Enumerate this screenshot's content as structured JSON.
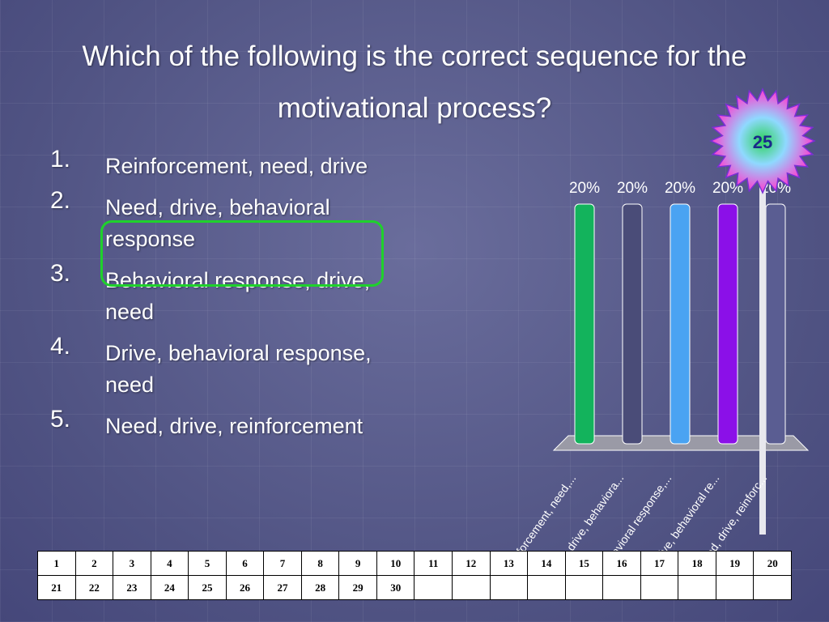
{
  "slide": {
    "title": "Which of the following is the correct sequence for the motivational process?"
  },
  "answers": [
    {
      "num": "1.",
      "text": "Reinforcement, need, drive"
    },
    {
      "num": "2.",
      "text": "Need, drive, behavioral response"
    },
    {
      "num": "3.",
      "text": "Behavioral response, drive, need"
    },
    {
      "num": "4.",
      "text": "Drive, behavioral response, need"
    },
    {
      "num": "5.",
      "text": "Need, drive, reinforcement"
    }
  ],
  "correct_answer": 2,
  "countdown": {
    "value": "25"
  },
  "chart_data": {
    "type": "bar",
    "categories": [
      "Reinforcement, need,...",
      "Need, drive, behaviora...",
      "Behavioral response,...",
      "Drive, behavioral re...",
      "Need, drive, reinforc..."
    ],
    "values": [
      20,
      20,
      20,
      20,
      20
    ],
    "value_labels": [
      "20%",
      "20%",
      "20%",
      "20%",
      "20%"
    ],
    "colors": [
      "#13b35c",
      "#4a4c78",
      "#4aa3f2",
      "#8b10e8",
      "#5a5d92"
    ],
    "ylim": [
      0,
      20
    ],
    "grid": false,
    "title": "",
    "xlabel": "",
    "ylabel": ""
  },
  "keypad_table": {
    "rows": [
      [
        "1",
        "2",
        "3",
        "4",
        "5",
        "6",
        "7",
        "8",
        "9",
        "10",
        "11",
        "12",
        "13",
        "14",
        "15",
        "16",
        "17",
        "18",
        "19",
        "20"
      ],
      [
        "21",
        "22",
        "23",
        "24",
        "25",
        "26",
        "27",
        "28",
        "29",
        "30",
        "",
        "",
        "",
        "",
        "",
        "",
        "",
        "",
        "",
        ""
      ]
    ]
  }
}
